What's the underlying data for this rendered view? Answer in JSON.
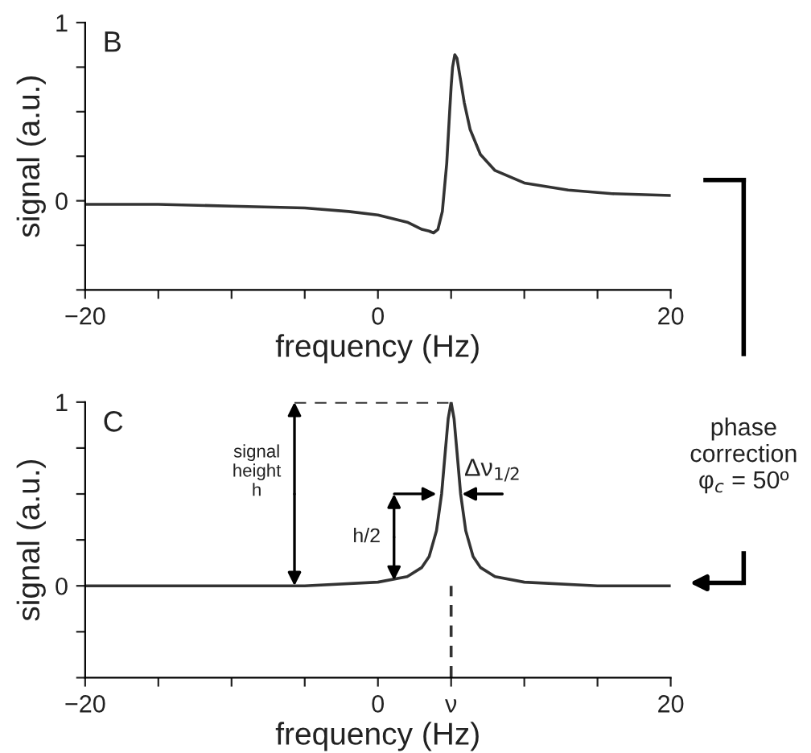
{
  "chart_data": [
    {
      "type": "line",
      "xlabel": "frequency (Hz)",
      "ylabel": "signal (a.u.)",
      "xlim": [
        -20,
        20
      ],
      "ylim": [
        -0.5,
        1
      ],
      "xticks": [
        -20,
        {
          "value": -15,
          "label": null
        },
        {
          "value": -10,
          "label": null
        },
        {
          "value": -5,
          "label": null
        },
        0,
        {
          "value": 5,
          "label": null
        },
        {
          "value": 10,
          "label": null
        },
        {
          "value": 15,
          "label": null
        },
        20
      ],
      "yticks": [
        {
          "value": -0.5,
          "label": null
        },
        {
          "value": -0.25,
          "label": null
        },
        0,
        {
          "value": 0.25,
          "label": null
        },
        {
          "value": 0.5,
          "label": null
        },
        {
          "value": 0.75,
          "label": null
        },
        1
      ],
      "grid": false,
      "legend": false,
      "series": [
        {
          "color": "#333333",
          "line_style": "solid",
          "x": [
            -20,
            -15,
            -10,
            -5,
            -2,
            0,
            1,
            2,
            3,
            3.5,
            3.8,
            4.1,
            4.4,
            4.7,
            4.9,
            5,
            5.1,
            5.25,
            5.4,
            5.6,
            5.9,
            6.3,
            7,
            8,
            10,
            13,
            16,
            20
          ],
          "values": [
            -0.02,
            -0.02,
            -0.03,
            -0.04,
            -0.06,
            -0.08,
            -0.1,
            -0.12,
            -0.16,
            -0.17,
            -0.18,
            -0.16,
            -0.06,
            0.21,
            0.5,
            0.64,
            0.75,
            0.82,
            0.8,
            0.7,
            0.55,
            0.4,
            0.26,
            0.17,
            0.1,
            0.06,
            0.04,
            0.03
          ]
        }
      ],
      "annotations": [
        "B"
      ]
    },
    {
      "type": "line",
      "xlabel": "frequency (Hz)",
      "ylabel": "signal (a.u.)",
      "xlim": [
        -20,
        20
      ],
      "ylim": [
        -0.5,
        1
      ],
      "xticks": [
        -20,
        {
          "value": -15,
          "label": null
        },
        {
          "value": -10,
          "label": null
        },
        {
          "value": -5,
          "label": null
        },
        0,
        {
          "value": 5,
          "label": "ν"
        },
        {
          "value": 10,
          "label": null
        },
        {
          "value": 15,
          "label": null
        },
        20
      ],
      "yticks": [
        {
          "value": -0.5,
          "label": null
        },
        {
          "value": -0.25,
          "label": null
        },
        0,
        {
          "value": 0.25,
          "label": null
        },
        {
          "value": 0.5,
          "label": null
        },
        {
          "value": 0.75,
          "label": null
        },
        1
      ],
      "grid": false,
      "legend": false,
      "series": [
        {
          "color": "#333333",
          "line_style": "solid",
          "x": [
            -20,
            -10,
            -5,
            0,
            2,
            3,
            3.5,
            4,
            4.35,
            4.6,
            4.8,
            5,
            5.2,
            5.4,
            5.65,
            6,
            6.5,
            7,
            8,
            10,
            15,
            20
          ],
          "values": [
            0,
            0,
            0,
            0.02,
            0.05,
            0.1,
            0.16,
            0.3,
            0.5,
            0.73,
            0.91,
            1,
            0.91,
            0.73,
            0.5,
            0.3,
            0.16,
            0.1,
            0.05,
            0.02,
            0,
            0
          ]
        },
        {
          "color": "#333333",
          "line_style": "dashed",
          "x": [
            -5.7,
            5
          ],
          "values": [
            1,
            1
          ]
        },
        {
          "color": "#333333",
          "line_style": "dashed",
          "x": [
            5,
            5
          ],
          "values": [
            -0.5,
            0
          ]
        }
      ],
      "annotations": [
        "C",
        {
          "text": "signal\nheight\nh",
          "x": -5.7,
          "y": 1
        },
        {
          "text": "h/2",
          "x": 1.1,
          "y": 0.03
        },
        {
          "text": "Δν$_{1/2}$",
          "x": 5,
          "y": 0.5
        },
        "phase\ncorrection\nφ$_{c}$ = 50º"
      ]
    }
  ]
}
